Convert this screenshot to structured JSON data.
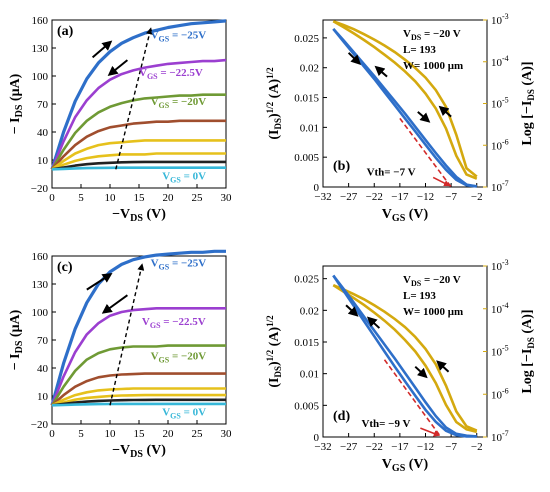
{
  "colors": {
    "blue": "#2e6fc9",
    "purple": "#9b3fd0",
    "green": "#6f9a35",
    "brown": "#a04e2e",
    "yellow": "#e6c11c",
    "black": "#222222",
    "cyan": "#36b7d8",
    "gold": "#d4a90f",
    "red_dash": "#d22a2a"
  },
  "icons": [
    "arrow-up-right-icon",
    "arrow-down-left-icon",
    "arrow-down-right-icon",
    "arrow-up-left-icon"
  ],
  "chart_data": [
    {
      "id": "a",
      "panel_label": "(a)",
      "type": "line",
      "xlabel": "−V",
      "xlabel_sub": "DS",
      "xlabel_unit": " (V)",
      "ylabel": "− I",
      "ylabel_sub": "DS",
      "ylabel_unit": " (μA)",
      "xlim": [
        0,
        30
      ],
      "ylim": [
        -20,
        160
      ],
      "x_ticks": [
        0,
        5,
        10,
        15,
        20,
        25,
        30
      ],
      "y_ticks": [
        -20,
        10,
        40,
        70,
        100,
        130,
        160
      ],
      "x": [
        0,
        2,
        4,
        6,
        8,
        10,
        12,
        14,
        16,
        18,
        20,
        22,
        24,
        26,
        28,
        30
      ],
      "series": [
        {
          "color_key": "blue",
          "values": [
            0,
            40,
            73,
            97,
            114,
            126,
            135,
            141,
            146,
            149,
            152,
            154,
            156,
            157,
            158,
            159
          ]
        },
        {
          "color_key": "purple",
          "values": [
            0,
            30,
            56,
            74,
            87,
            96,
            102,
            106,
            109,
            111,
            113,
            114,
            115,
            116,
            116,
            117
          ]
        },
        {
          "color_key": "green",
          "values": [
            0,
            21,
            39,
            52,
            61,
            67,
            71,
            74,
            76,
            77,
            78,
            79,
            79,
            80,
            80,
            80
          ]
        },
        {
          "color_key": "brown",
          "values": [
            0,
            14,
            26,
            35,
            41,
            45,
            47,
            49,
            50,
            51,
            51,
            52,
            52,
            52,
            52,
            52
          ]
        },
        {
          "color_key": "yellow",
          "values": [
            0,
            9,
            17,
            22,
            26,
            28,
            29,
            30,
            31,
            31,
            31,
            31,
            31,
            31,
            31,
            31
          ]
        },
        {
          "color_key": "yellow",
          "values": [
            0,
            5,
            9,
            12,
            14,
            15,
            16,
            16,
            16,
            17,
            17,
            17,
            17,
            17,
            17,
            17
          ]
        },
        {
          "color_key": "black",
          "values": [
            0,
            2,
            4,
            5.5,
            6.5,
            7,
            7.5,
            7.8,
            8,
            8,
            8,
            8,
            8,
            8,
            8,
            8
          ]
        },
        {
          "color_key": "cyan",
          "values": [
            0,
            0.5,
            1,
            1.3,
            1.5,
            1.6,
            1.7,
            1.8,
            1.8,
            1.8,
            1.8,
            1.8,
            1.8,
            1.8,
            1.8,
            1.8
          ]
        }
      ],
      "labels": [
        {
          "text_a": "V",
          "sub": "GS",
          "text_b": " = −25V",
          "color_key": "blue",
          "x": 17,
          "y": 140
        },
        {
          "text_a": "V",
          "sub": "GS",
          "text_b": " = −22.5V",
          "color_key": "purple",
          "x": 15,
          "y": 100
        },
        {
          "text_a": "V",
          "sub": "GS",
          "text_b": " = −20V",
          "color_key": "green",
          "x": 17,
          "y": 69
        },
        {
          "text_a": "V",
          "sub": "GS",
          "text_b": " = 0V",
          "color_key": "cyan",
          "x": 19,
          "y": -11
        }
      ],
      "dashed_line": {
        "x1": 11,
        "y1": 0,
        "x2": 17,
        "y2": 150
      },
      "arrows": [
        {
          "x1": 7,
          "y1": 120,
          "x2": 10,
          "y2": 136,
          "name": "arrow-up-right-icon"
        },
        {
          "x1": 13,
          "y1": 117,
          "x2": 10,
          "y2": 102,
          "name": "arrow-down-left-icon"
        }
      ]
    },
    {
      "id": "b",
      "panel_label": "(b)",
      "type": "line",
      "xlabel": "V",
      "xlabel_sub": "GS",
      "xlabel_unit": " (V)",
      "ylabel": "(I",
      "ylabel_sub": "DS",
      "ylabel_unit": ")",
      "ylabel_sup": "1/2",
      "ylabel_unit2": " (A)",
      "ylabel_sup2": "1/2",
      "y2label": "Log [−I",
      "y2label_sub": "DS",
      "y2label_unit": " (A)]",
      "xlim": [
        -32,
        0
      ],
      "ylim": [
        0,
        0.028
      ],
      "y2_log_range": [
        -7,
        -3
      ],
      "x_ticks": [
        -32,
        -27,
        -22,
        -17,
        -12,
        -7,
        -2
      ],
      "y_ticks": [
        0,
        0.005,
        0.01,
        0.015,
        0.02,
        0.025
      ],
      "y_tick_labels": [
        "0",
        "0.005",
        "0.01",
        "0.015",
        "0.02",
        "0.025"
      ],
      "y2_tick_labels": [
        "-7",
        "-6",
        "-5",
        "-4",
        "-3"
      ],
      "x": [
        -30,
        -28,
        -26,
        -24,
        -22,
        -20,
        -18,
        -16,
        -14,
        -12,
        -10,
        -8,
        -6,
        -4,
        -2
      ],
      "sqrt_series": [
        {
          "color_key": "blue",
          "values": [
            0.0265,
            0.0246,
            0.0226,
            0.0206,
            0.0186,
            0.0165,
            0.0144,
            0.0123,
            0.0101,
            0.0079,
            0.0057,
            0.0036,
            0.0017,
            0.0004,
            0.0001
          ]
        },
        {
          "color_key": "blue",
          "values": [
            0.0265,
            0.0244,
            0.0223,
            0.0202,
            0.0181,
            0.0159,
            0.0137,
            0.0115,
            0.0093,
            0.0071,
            0.0049,
            0.0029,
            0.0012,
            0.0003,
            0.0001
          ]
        }
      ],
      "log_series": [
        {
          "color_key": "gold",
          "values": [
            -3.03,
            -3.12,
            -3.22,
            -3.34,
            -3.47,
            -3.61,
            -3.77,
            -3.95,
            -4.15,
            -4.38,
            -4.68,
            -5.08,
            -5.75,
            -6.55,
            -6.75
          ]
        },
        {
          "color_key": "gold",
          "values": [
            -3.03,
            -3.17,
            -3.32,
            -3.48,
            -3.65,
            -3.83,
            -4.02,
            -4.23,
            -4.47,
            -4.76,
            -5.12,
            -5.6,
            -6.25,
            -6.7,
            -6.8
          ]
        }
      ],
      "fit_line": {
        "x1": -17,
        "y1": 0.0115,
        "x2": -7,
        "y2": 0
      },
      "vth_label": {
        "text": "Vth= −7 V",
        "x": -23.5,
        "y": 0.0019
      },
      "vth_arrow": {
        "x1": -10.5,
        "y1": 0.0016,
        "x2": -7.5,
        "y2": 0.0003
      },
      "info_lines": [
        {
          "a": "V",
          "sub": "DS",
          "b": " = −20 V"
        },
        {
          "a": "L= 193",
          "sub": "",
          "b": ""
        },
        {
          "a": "W= 1000 μm",
          "sub": "",
          "b": ""
        }
      ],
      "arrows": [
        {
          "x1": -27,
          "y1": 0.0225,
          "x2": -25,
          "y2": 0.0208,
          "name": "arrow-down-right-icon"
        },
        {
          "x1": -19.5,
          "y1": 0.0185,
          "x2": -21.5,
          "y2": 0.02,
          "name": "arrow-up-left-icon"
        },
        {
          "x1": -13.5,
          "y1": 0.0126,
          "x2": -11.5,
          "y2": 0.0111,
          "name": "arrow-down-right-icon"
        },
        {
          "x1": -7,
          "y1": 0.0118,
          "x2": -9,
          "y2": 0.0133,
          "name": "arrow-up-left-icon"
        }
      ]
    },
    {
      "id": "c",
      "panel_label": "(c)",
      "type": "line",
      "xlabel": "−V",
      "xlabel_sub": "DS",
      "xlabel_unit": " (V)",
      "ylabel": "− I",
      "ylabel_sub": "DS",
      "ylabel_unit": " (μA)",
      "xlim": [
        0,
        30
      ],
      "ylim": [
        -20,
        160
      ],
      "x_ticks": [
        0,
        5,
        10,
        15,
        20,
        25,
        30
      ],
      "y_ticks": [
        -20,
        10,
        40,
        70,
        100,
        130,
        160
      ],
      "x": [
        0,
        2,
        4,
        6,
        8,
        10,
        12,
        14,
        16,
        18,
        20,
        22,
        24,
        26,
        28,
        30
      ],
      "series": [
        {
          "color_key": "blue",
          "values": [
            0,
            45,
            82,
            110,
            130,
            143,
            151,
            156,
            159,
            161,
            162,
            163,
            164,
            164,
            165,
            165
          ]
        },
        {
          "color_key": "purple",
          "values": [
            0,
            31,
            57,
            76,
            88,
            96,
            100,
            102,
            103,
            104,
            104,
            104,
            104,
            104,
            104,
            104
          ]
        },
        {
          "color_key": "green",
          "values": [
            0,
            20,
            37,
            49,
            56,
            60,
            62,
            63,
            63,
            63,
            64,
            64,
            64,
            64,
            64,
            64
          ]
        },
        {
          "color_key": "brown",
          "values": [
            0,
            11,
            20,
            26,
            30,
            32,
            33,
            33.5,
            34,
            34,
            34,
            34,
            34,
            34,
            34,
            34
          ]
        },
        {
          "color_key": "yellow",
          "values": [
            0,
            6,
            11,
            14,
            16,
            17,
            17.5,
            18,
            18,
            18,
            18,
            18,
            18,
            18,
            18,
            18
          ]
        },
        {
          "color_key": "yellow",
          "values": [
            0,
            3,
            6,
            8,
            9,
            10,
            10.5,
            10.8,
            11,
            11,
            11,
            11,
            11,
            11,
            11,
            11
          ]
        },
        {
          "color_key": "black",
          "values": [
            0,
            1.5,
            3,
            4,
            4.8,
            5.2,
            5.5,
            5.7,
            5.8,
            5.9,
            5.9,
            5.9,
            5.9,
            5.9,
            5.9,
            5.9
          ]
        },
        {
          "color_key": "cyan",
          "values": [
            0,
            0.4,
            0.8,
            1.1,
            1.3,
            1.4,
            1.5,
            1.5,
            1.5,
            1.5,
            1.5,
            1.5,
            1.5,
            1.5,
            1.5,
            1.5
          ]
        }
      ],
      "labels": [
        {
          "text_a": "V",
          "sub": "GS",
          "text_b": " = −25V",
          "color_key": "blue",
          "x": 17,
          "y": 149
        },
        {
          "text_a": "V",
          "sub": "GS",
          "text_b": " = −22.5V",
          "color_key": "purple",
          "x": 15.5,
          "y": 86
        },
        {
          "text_a": "V",
          "sub": "GS",
          "text_b": " = −20V",
          "color_key": "green",
          "x": 17,
          "y": 49
        },
        {
          "text_a": "V",
          "sub": "GS",
          "text_b": " = 0V",
          "color_key": "cyan",
          "x": 19,
          "y": -11
        }
      ],
      "dashed_line": {
        "x1": 10,
        "y1": 0,
        "x2": 15.5,
        "y2": 150
      },
      "arrows": [
        {
          "x1": 6,
          "y1": 124,
          "x2": 10,
          "y2": 140,
          "name": "arrow-up-right-icon"
        },
        {
          "x1": 13,
          "y1": 118,
          "x2": 9,
          "y2": 100,
          "name": "arrow-down-left-icon"
        }
      ]
    },
    {
      "id": "d",
      "panel_label": "(d)",
      "type": "line",
      "xlabel": "V",
      "xlabel_sub": "GS",
      "xlabel_unit": " (V)",
      "ylabel": "(I",
      "ylabel_sub": "DS",
      "ylabel_unit": ")",
      "ylabel_sup": "1/2",
      "ylabel_unit2": " (A)",
      "ylabel_sup2": "1/2",
      "y2label": "Log [−I",
      "y2label_sub": "DS",
      "y2label_unit": " (A)]",
      "xlim": [
        -32,
        0
      ],
      "ylim": [
        0,
        0.027
      ],
      "y2_log_range": [
        -7,
        -3
      ],
      "x_ticks": [
        -32,
        -27,
        -22,
        -17,
        -12,
        -7,
        -2
      ],
      "y_ticks": [
        0,
        0.005,
        0.01,
        0.015,
        0.02,
        0.025
      ],
      "y_tick_labels": [
        "0",
        "0.005",
        "0.01",
        "0.015",
        "0.02",
        "0.025"
      ],
      "y2_tick_labels": [
        "-7",
        "-6",
        "-5",
        "-4",
        "-3"
      ],
      "x": [
        -30,
        -28,
        -26,
        -24,
        -22,
        -20,
        -18,
        -16,
        -14,
        -12,
        -10,
        -8,
        -6,
        -4,
        -2
      ],
      "sqrt_series": [
        {
          "color_key": "blue",
          "values": [
            0.0255,
            0.0234,
            0.0212,
            0.019,
            0.0168,
            0.0146,
            0.0124,
            0.0101,
            0.0078,
            0.0055,
            0.0033,
            0.0015,
            0.0005,
            0.0002,
            0.0001
          ]
        },
        {
          "color_key": "blue",
          "values": [
            0.0255,
            0.0231,
            0.0207,
            0.0183,
            0.0159,
            0.0135,
            0.0111,
            0.0088,
            0.0065,
            0.0043,
            0.0024,
            0.001,
            0.0003,
            0.0001,
            0.0001
          ]
        }
      ],
      "log_series": [
        {
          "color_key": "gold",
          "values": [
            -3.45,
            -3.55,
            -3.66,
            -3.78,
            -3.92,
            -4.07,
            -4.24,
            -4.43,
            -4.66,
            -4.94,
            -5.3,
            -5.8,
            -6.4,
            -6.75,
            -6.85
          ]
        },
        {
          "color_key": "gold",
          "values": [
            -3.45,
            -3.6,
            -3.75,
            -3.91,
            -4.09,
            -4.28,
            -4.49,
            -4.73,
            -5.0,
            -5.33,
            -5.74,
            -6.25,
            -6.65,
            -6.82,
            -6.88
          ]
        }
      ],
      "fit_line": {
        "x1": -20,
        "y1": 0.0122,
        "x2": -9,
        "y2": 0
      },
      "vth_label": {
        "text": "Vth= −9 V",
        "x": -24.5,
        "y": 0.0016
      },
      "vth_arrow": {
        "x1": -13,
        "y1": 0.0014,
        "x2": -9.5,
        "y2": 0.0003
      },
      "info_lines": [
        {
          "a": "V",
          "sub": "DS",
          "b": " = −20 V"
        },
        {
          "a": "L= 193",
          "sub": "",
          "b": ""
        },
        {
          "a": "W= 1000 μm",
          "sub": "",
          "b": ""
        }
      ],
      "arrows": [
        {
          "x1": -27.5,
          "y1": 0.0208,
          "x2": -25.5,
          "y2": 0.0193,
          "name": "arrow-down-right-icon"
        },
        {
          "x1": -21,
          "y1": 0.0172,
          "x2": -23,
          "y2": 0.0187,
          "name": "arrow-up-left-icon"
        },
        {
          "x1": -14,
          "y1": 0.0111,
          "x2": -12,
          "y2": 0.0096,
          "name": "arrow-down-right-icon"
        },
        {
          "x1": -7.5,
          "y1": 0.0103,
          "x2": -9.5,
          "y2": 0.0118,
          "name": "arrow-up-left-icon"
        }
      ]
    }
  ]
}
